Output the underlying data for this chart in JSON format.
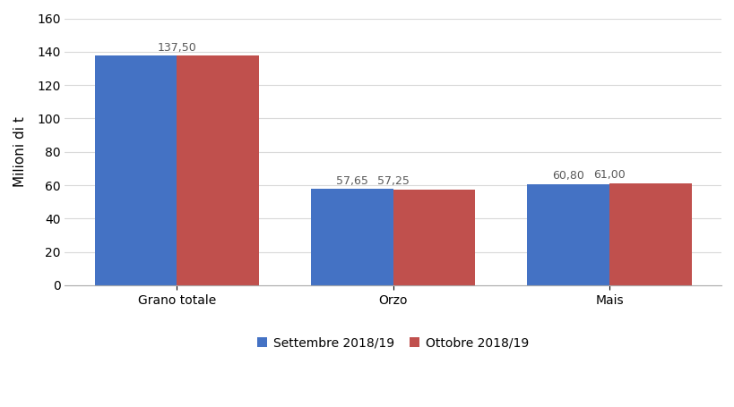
{
  "categories": [
    "Grano totale",
    "Orzo",
    "Mais"
  ],
  "series": [
    {
      "label": "Settembre 2018/19",
      "values": [
        137.5,
        57.65,
        60.8
      ],
      "color": "#4472C4"
    },
    {
      "label": "Ottobre 2018/19",
      "values": [
        137.5,
        57.25,
        61.0
      ],
      "color": "#C0504D"
    }
  ],
  "bar_labels": [
    [
      null,
      "57,65",
      "60,80"
    ],
    [
      "137,50",
      "57,25",
      "61,00"
    ]
  ],
  "ylabel": "Milioni di t",
  "ylim": [
    0,
    160
  ],
  "yticks": [
    0,
    20,
    40,
    60,
    80,
    100,
    120,
    140,
    160
  ],
  "background_color": "#ffffff",
  "grid_color": "#d9d9d9",
  "bar_width": 0.38,
  "label_fontsize": 9.0,
  "tick_fontsize": 10,
  "ylabel_fontsize": 11,
  "legend_fontsize": 10,
  "label_color": "#595959"
}
